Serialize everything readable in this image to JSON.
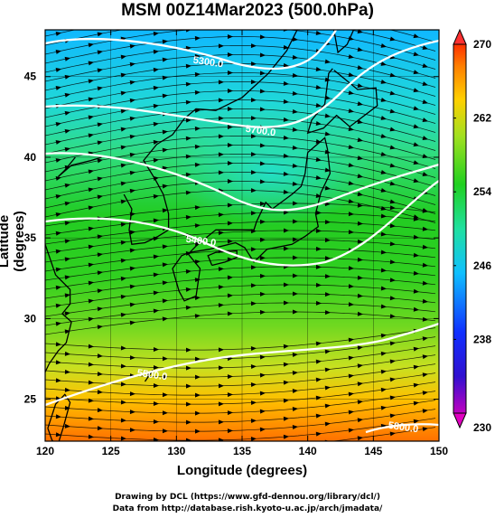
{
  "title": "MSM 00Z14Mar2023 (500.0hPa)",
  "x_axis": {
    "label": "Longitude (degrees)",
    "ticks": [
      120,
      125,
      130,
      135,
      140,
      145,
      150
    ]
  },
  "y_axis": {
    "label": "Latitude  (degrees)",
    "ticks": [
      25,
      30,
      35,
      40,
      45
    ]
  },
  "colorbar": {
    "ticks": [
      230,
      238,
      246,
      254,
      262,
      270
    ]
  },
  "contours": [
    {
      "label": "5300.0"
    },
    {
      "label": "5400.0"
    },
    {
      "label": "5500.0"
    },
    {
      "label": "5700.0"
    },
    {
      "label": "5800.0"
    }
  ],
  "credits": [
    "Drawing by DCL (https://www.gfd-dennou.org/library/dcl/)",
    "Data from http://database.rish.kyoto-u.ac.jp/arch/jmadata/"
  ],
  "colors": {
    "cold": "#1028e0",
    "mid": "#20c830",
    "warm": "#ff8000"
  }
}
